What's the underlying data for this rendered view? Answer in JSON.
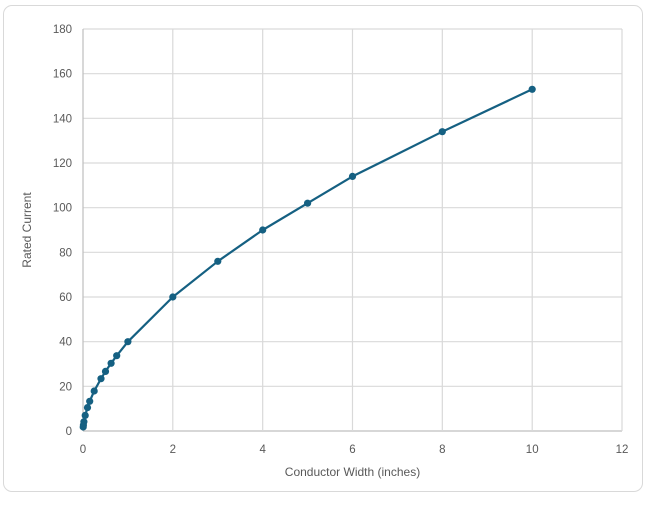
{
  "window": {
    "background_color": "#ffffff",
    "frame_border_color": "#D9D9D9"
  },
  "chart_data": {
    "type": "scatter",
    "title": "",
    "xlabel": "Conductor Width (inches)",
    "ylabel": "Rated Current",
    "xlim": [
      0,
      12
    ],
    "ylim": [
      0,
      180
    ],
    "x_ticks": [
      0,
      2,
      4,
      6,
      8,
      10,
      12
    ],
    "y_ticks": [
      0,
      20,
      40,
      60,
      80,
      100,
      120,
      140,
      160,
      180
    ],
    "grid": true,
    "legend_position": "none",
    "series": [
      {
        "name": "Rated Current",
        "marker": "circle",
        "line_style": "solid",
        "color": "#156082",
        "x": [
          0.005,
          0.01,
          0.02,
          0.05,
          0.1,
          0.15,
          0.25,
          0.4,
          0.5,
          0.625,
          0.75,
          1,
          2,
          3,
          4,
          5,
          6,
          8,
          10
        ],
        "y": [
          1.8,
          2.7,
          4.1,
          7,
          10.5,
          13.3,
          17.9,
          23.4,
          26.7,
          30.3,
          33.7,
          40,
          60,
          76,
          90,
          102,
          114,
          134,
          153
        ]
      }
    ],
    "colors": {
      "gridline": "#D9D9D9",
      "axis_line": "#BFBFBF",
      "tick_text": "#595959",
      "axis_title_text": "#595959"
    }
  }
}
